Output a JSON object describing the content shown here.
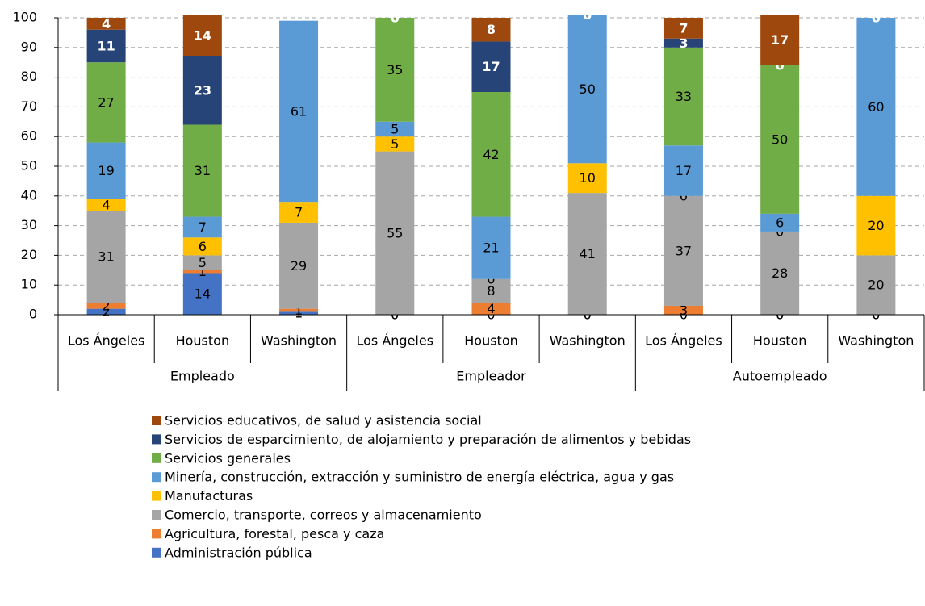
{
  "chart_data": {
    "type": "bar",
    "stacked": true,
    "categories": [
      "Los Ángeles",
      "Houston",
      "Washington",
      "Los Ángeles",
      "Houston",
      "Washington",
      "Los Ángeles",
      "Houston",
      "Washington"
    ],
    "groups": [
      "Empleado",
      "Empleador",
      "Autoempleado"
    ],
    "ylim": [
      0,
      100
    ],
    "yticks": [
      0,
      10,
      20,
      30,
      40,
      50,
      60,
      70,
      80,
      90,
      100
    ],
    "grid": true,
    "series": [
      {
        "name": "Administración pública",
        "color": "#4472c4",
        "values": [
          2,
          14,
          1,
          0,
          0,
          0,
          0,
          0,
          0
        ]
      },
      {
        "name": "Agricultura, forestal, pesca y caza",
        "color": "#ed7d31",
        "values": [
          2,
          1,
          1,
          0,
          4,
          0,
          3,
          0,
          0
        ]
      },
      {
        "name": "Comercio, transporte, correos y almacenamiento",
        "color": "#a5a5a5",
        "values": [
          31,
          5,
          29,
          55,
          8,
          41,
          37,
          28,
          20
        ]
      },
      {
        "name": "Manufacturas",
        "color": "#ffc000",
        "values": [
          4,
          6,
          7,
          5,
          0,
          10,
          0,
          0,
          20
        ]
      },
      {
        "name": "Minería, construcción, extracción y suministro de energía eléctrica, agua y gas",
        "color": "#5b9bd5",
        "values": [
          19,
          7,
          61,
          5,
          21,
          50,
          17,
          6,
          60
        ]
      },
      {
        "name": "Servicios generales",
        "color": "#70ad47",
        "values": [
          27,
          31,
          null,
          35,
          42,
          0,
          33,
          50,
          0
        ]
      },
      {
        "name": "Servicios de esparcimiento, de alojamiento y preparación de alimentos y bebidas",
        "color": "#264478",
        "values": [
          11,
          23,
          null,
          0,
          17,
          0,
          3,
          0,
          0
        ]
      },
      {
        "name": "Servicios educativos, de salud y asistencia social",
        "color": "#9e480e",
        "values": [
          4,
          14,
          null,
          0,
          8,
          0,
          7,
          17,
          0
        ]
      }
    ]
  }
}
